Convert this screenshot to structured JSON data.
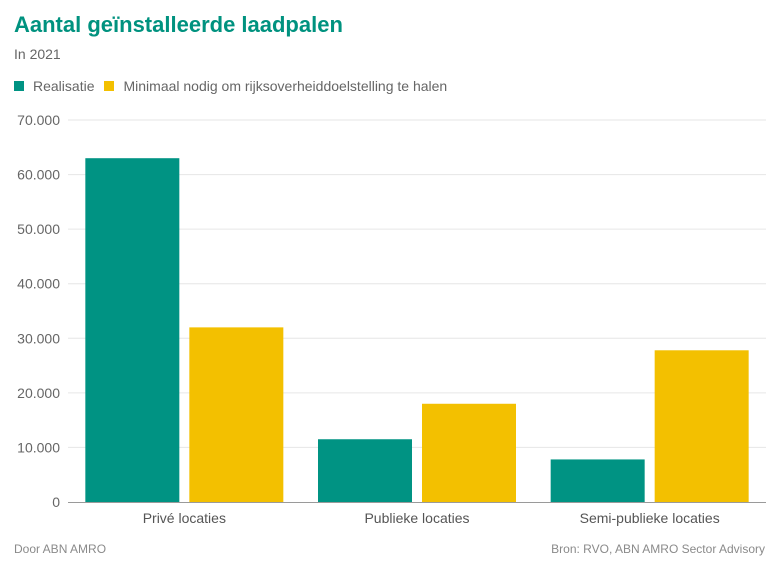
{
  "chart_data": {
    "type": "bar",
    "title": "Aantal geïnstalleerde laadpalen",
    "subtitle": "In 2021",
    "categories": [
      "Privé locaties",
      "Publieke locaties",
      "Semi-publieke locaties"
    ],
    "series": [
      {
        "name": "Realisatie",
        "color": "#009383",
        "values": [
          63000,
          11500,
          7800
        ]
      },
      {
        "name": "Minimaal nodig om rijksoverheiddoelstelling te halen",
        "color": "#f3c000",
        "values": [
          32000,
          18000,
          27800
        ]
      }
    ],
    "ylim": [
      0,
      70000
    ],
    "yticks": [
      0,
      10000,
      20000,
      30000,
      40000,
      50000,
      60000,
      70000
    ],
    "ytick_labels": [
      "0",
      "10.000",
      "20.000",
      "30.000",
      "40.000",
      "50.000",
      "60.000",
      "70.000"
    ],
    "grid": true,
    "legend_position": "top-left"
  },
  "footer": {
    "left": "Door ABN AMRO",
    "right": "Bron: RVO, ABN AMRO Sector Advisory"
  }
}
